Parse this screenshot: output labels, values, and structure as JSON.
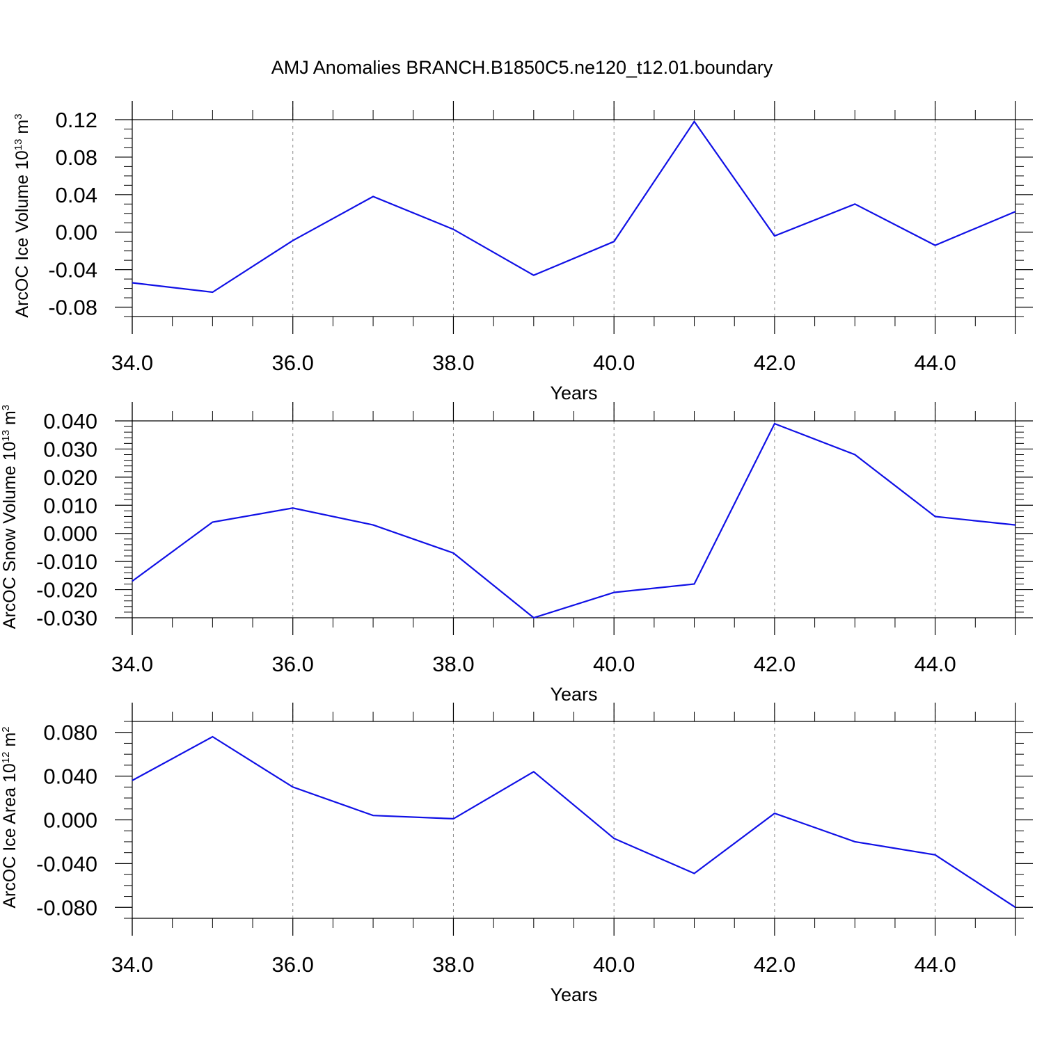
{
  "figure": {
    "title": "AMJ Anomalies BRANCH.B1850C5.ne120_t12.01.boundary"
  },
  "colors": {
    "line": "#1010e6",
    "axis": "#000000",
    "grid": "#8a8a8a"
  },
  "chart_data": [
    {
      "type": "line",
      "xlabel": "Years",
      "ylabel": {
        "base": "ArcOC Ice Volume 10",
        "exp": "13",
        "unit": " m",
        "unit_exp": "3"
      },
      "xlim": [
        34,
        45
      ],
      "ylim": [
        -0.09,
        0.12
      ],
      "x_ticks": [
        34,
        36,
        38,
        40,
        42,
        44
      ],
      "x_tick_labels": [
        "34.0",
        "36.0",
        "38.0",
        "40.0",
        "42.0",
        "44.0"
      ],
      "y_ticks": [
        -0.08,
        -0.04,
        0.0,
        0.04,
        0.08,
        0.12
      ],
      "y_tick_labels": [
        "-0.08",
        "-0.04",
        "0.00",
        "0.04",
        "0.08",
        "0.12"
      ],
      "y_minor_step": 0.01,
      "grid": "vertical dashed at major x ticks",
      "series": [
        {
          "x": [
            34,
            35,
            36,
            37,
            38,
            39,
            40,
            41,
            42,
            43,
            44,
            45
          ],
          "y": [
            -0.054,
            -0.064,
            -0.009,
            0.038,
            0.003,
            -0.046,
            -0.01,
            0.118,
            -0.004,
            0.03,
            -0.014,
            0.022
          ]
        }
      ]
    },
    {
      "type": "line",
      "xlabel": "Years",
      "ylabel": {
        "base": "ArcOC Snow Volume 10",
        "exp": "13",
        "unit": " m",
        "unit_exp": "3"
      },
      "xlim": [
        34,
        45
      ],
      "ylim": [
        -0.03,
        0.04
      ],
      "x_ticks": [
        34,
        36,
        38,
        40,
        42,
        44
      ],
      "x_tick_labels": [
        "34.0",
        "36.0",
        "38.0",
        "40.0",
        "42.0",
        "44.0"
      ],
      "y_ticks": [
        -0.03,
        -0.02,
        -0.01,
        0.0,
        0.01,
        0.02,
        0.03,
        0.04
      ],
      "y_tick_labels": [
        "-0.030",
        "-0.020",
        "-0.010",
        "0.000",
        "0.010",
        "0.020",
        "0.030",
        "0.040"
      ],
      "y_minor_step": 0.002,
      "grid": "vertical dashed at major x ticks",
      "series": [
        {
          "x": [
            34,
            35,
            36,
            37,
            38,
            39,
            40,
            41,
            42,
            43,
            44,
            45
          ],
          "y": [
            -0.017,
            0.004,
            0.009,
            0.003,
            -0.007,
            -0.03,
            -0.021,
            -0.018,
            0.039,
            0.028,
            0.006,
            0.003
          ]
        }
      ]
    },
    {
      "type": "line",
      "xlabel": "Years",
      "ylabel": {
        "base": "ArcOC Ice Area 10",
        "exp": "12",
        "unit": " m",
        "unit_exp": "2"
      },
      "xlim": [
        34,
        45
      ],
      "ylim": [
        -0.09,
        0.09
      ],
      "x_ticks": [
        34,
        36,
        38,
        40,
        42,
        44
      ],
      "x_tick_labels": [
        "34.0",
        "36.0",
        "38.0",
        "40.0",
        "42.0",
        "44.0"
      ],
      "y_ticks": [
        -0.08,
        -0.04,
        0.0,
        0.04,
        0.08
      ],
      "y_tick_labels": [
        "-0.080",
        "-0.040",
        "0.000",
        "0.040",
        "0.080"
      ],
      "y_minor_step": 0.01,
      "grid": "vertical dashed at major x ticks",
      "series": [
        {
          "x": [
            34,
            35,
            36,
            37,
            38,
            39,
            40,
            41,
            42,
            43,
            44,
            45
          ],
          "y": [
            0.036,
            0.076,
            0.03,
            0.004,
            0.001,
            0.044,
            -0.017,
            -0.049,
            0.006,
            -0.02,
            -0.032,
            -0.08
          ]
        }
      ]
    }
  ]
}
